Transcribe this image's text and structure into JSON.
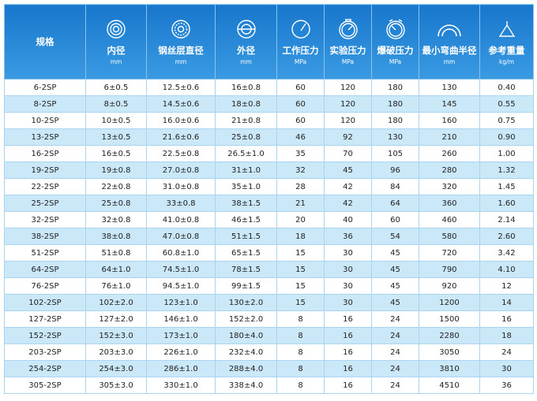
{
  "table": {
    "header": [
      {
        "title": "规格"
      },
      {
        "title": "内径",
        "unit": "mm"
      },
      {
        "title": "钢丝层直径",
        "unit": "mm"
      },
      {
        "title": "外径",
        "unit": "mm"
      },
      {
        "title": "工作压力",
        "unit": "MPa"
      },
      {
        "title": "实验压力",
        "unit": "MPa"
      },
      {
        "title": "爆破压力",
        "unit": "MPa"
      },
      {
        "title": "最小弯曲半径",
        "unit": "mm"
      },
      {
        "title": "参考重量",
        "unit": "kg/m"
      }
    ],
    "rows": [
      [
        "6-2SP",
        "6±0.5",
        "12.5±0.6",
        "16±0.8",
        "60",
        "120",
        "180",
        "130",
        "0.40"
      ],
      [
        "8-2SP",
        "8±0.5",
        "14.5±0.6",
        "18±0.8",
        "60",
        "120",
        "180",
        "145",
        "0.55"
      ],
      [
        "10-2SP",
        "10±0.5",
        "16.0±0.6",
        "21±0.8",
        "60",
        "120",
        "180",
        "160",
        "0.75"
      ],
      [
        "13-2SP",
        "13±0.5",
        "21.6±0.6",
        "25±0.8",
        "46",
        "92",
        "130",
        "210",
        "0.90"
      ],
      [
        "16-2SP",
        "16±0.5",
        "22.5±0.8",
        "26.5±1.0",
        "35",
        "70",
        "105",
        "260",
        "1.00"
      ],
      [
        "19-2SP",
        "19±0.8",
        "27.0±0.8",
        "31±1.0",
        "32",
        "45",
        "96",
        "280",
        "1.32"
      ],
      [
        "22-2SP",
        "22±0.8",
        "31.0±0.8",
        "35±1.0",
        "28",
        "42",
        "84",
        "320",
        "1.45"
      ],
      [
        "25-2SP",
        "25±0.8",
        "33±0.8",
        "38±1.5",
        "21",
        "42",
        "64",
        "360",
        "1.60"
      ],
      [
        "32-2SP",
        "32±0.8",
        "41.0±0.8",
        "46±1.5",
        "20",
        "40",
        "60",
        "460",
        "2.14"
      ],
      [
        "38-2SP",
        "38±0.8",
        "47.0±0.8",
        "51±1.5",
        "18",
        "36",
        "54",
        "580",
        "2.60"
      ],
      [
        "51-2SP",
        "51±0.8",
        "60.8±1.0",
        "65±1.5",
        "15",
        "30",
        "45",
        "720",
        "3.42"
      ],
      [
        "64-2SP",
        "64±1.0",
        "74.5±1.0",
        "78±1.5",
        "15",
        "30",
        "45",
        "790",
        "4.10"
      ],
      [
        "76-2SP",
        "76±1.0",
        "94.5±1.0",
        "99±1.5",
        "15",
        "30",
        "45",
        "920",
        "12"
      ],
      [
        "102-2SP",
        "102±2.0",
        "123±1.0",
        "130±2.0",
        "15",
        "30",
        "45",
        "1200",
        "14"
      ],
      [
        "127-2SP",
        "127±2.0",
        "146±1.0",
        "152±2.0",
        "8",
        "16",
        "24",
        "1500",
        "16"
      ],
      [
        "152-2SP",
        "152±3.0",
        "173±1.0",
        "180±4.0",
        "8",
        "16",
        "24",
        "2280",
        "18"
      ],
      [
        "203-2SP",
        "203±3.0",
        "226±1.0",
        "232±4.0",
        "8",
        "16",
        "24",
        "3050",
        "24"
      ],
      [
        "254-2SP",
        "254±3.0",
        "286±1.0",
        "288±4.0",
        "8",
        "16",
        "24",
        "3810",
        "30"
      ],
      [
        "305-2SP",
        "305±3.0",
        "330±1.0",
        "338±4.0",
        "8",
        "16",
        "24",
        "4510",
        "36"
      ]
    ]
  }
}
